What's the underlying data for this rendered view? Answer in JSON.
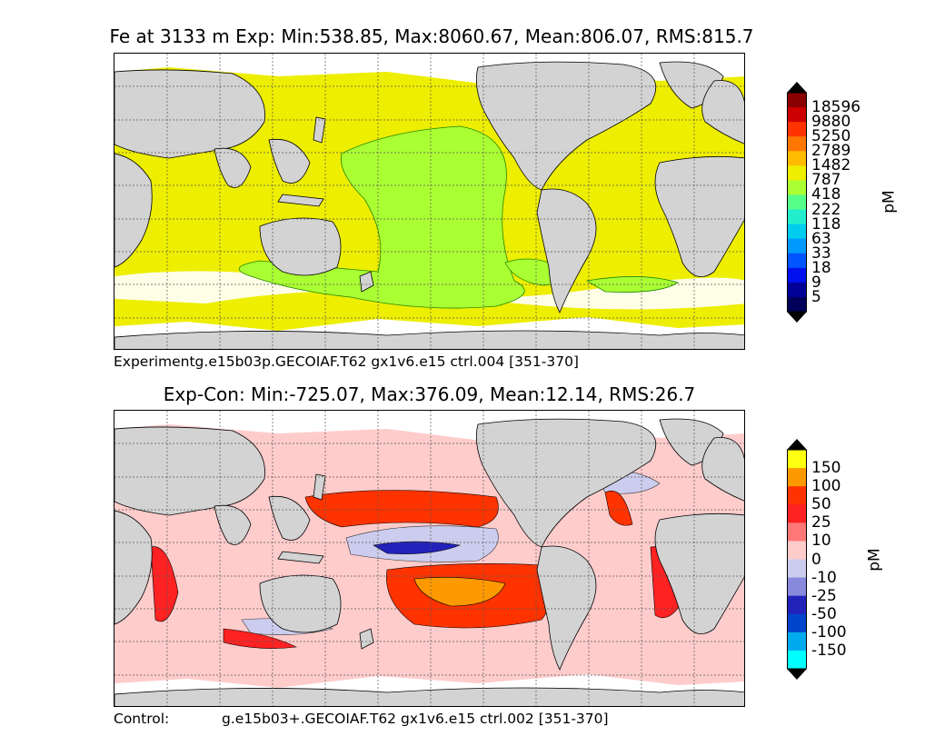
{
  "top": {
    "title": "Fe at 3133 m Exp: Min:538.85, Max:8060.67, Mean:806.07, RMS:815.7",
    "caption": "Experimentg.e15b03p.GECOIAF.T62 gx1v6.e15 ctrl.004   [351-370]",
    "colorbar": {
      "unit": "pM",
      "levels": [
        "18596",
        "9880",
        "5250",
        "2789",
        "1482",
        "787",
        "418",
        "222",
        "118",
        "63",
        "33",
        "18",
        "9",
        "5"
      ],
      "colors": [
        "#8b0000",
        "#cc0000",
        "#ff3300",
        "#ff7700",
        "#ffbb00",
        "#eeee00",
        "#aaff33",
        "#55ff88",
        "#22eecc",
        "#00ccee",
        "#0099ff",
        "#0055ff",
        "#0011ee",
        "#000099",
        "#00005a"
      ],
      "over_color": "#000000",
      "under_color": "#000000"
    }
  },
  "bottom": {
    "title": "Exp-Con: Min:-725.07, Max:376.09, Mean:12.14, RMS:26.7",
    "caption_left": "Control:",
    "caption_right": "g.e15b03+.GECOIAF.T62 gx1v6.e15 ctrl.002  [351-370]",
    "colorbar": {
      "unit": "pM",
      "levels": [
        "150",
        "100",
        "50",
        "25",
        "10",
        "0",
        "-10",
        "-25",
        "-50",
        "-100",
        "-150"
      ],
      "colors": [
        "#ffff11",
        "#ff9900",
        "#ff3300",
        "#ff2222",
        "#ff7777",
        "#ffcccc",
        "#ccccee",
        "#8888dd",
        "#2222bb",
        "#0044cc",
        "#00aaee",
        "#00ffff"
      ],
      "over_color": "#000000",
      "under_color": "#000000"
    }
  },
  "colors": {
    "land": "#d3d3d3",
    "no_data": "#ffffff",
    "grid": "#555555"
  }
}
